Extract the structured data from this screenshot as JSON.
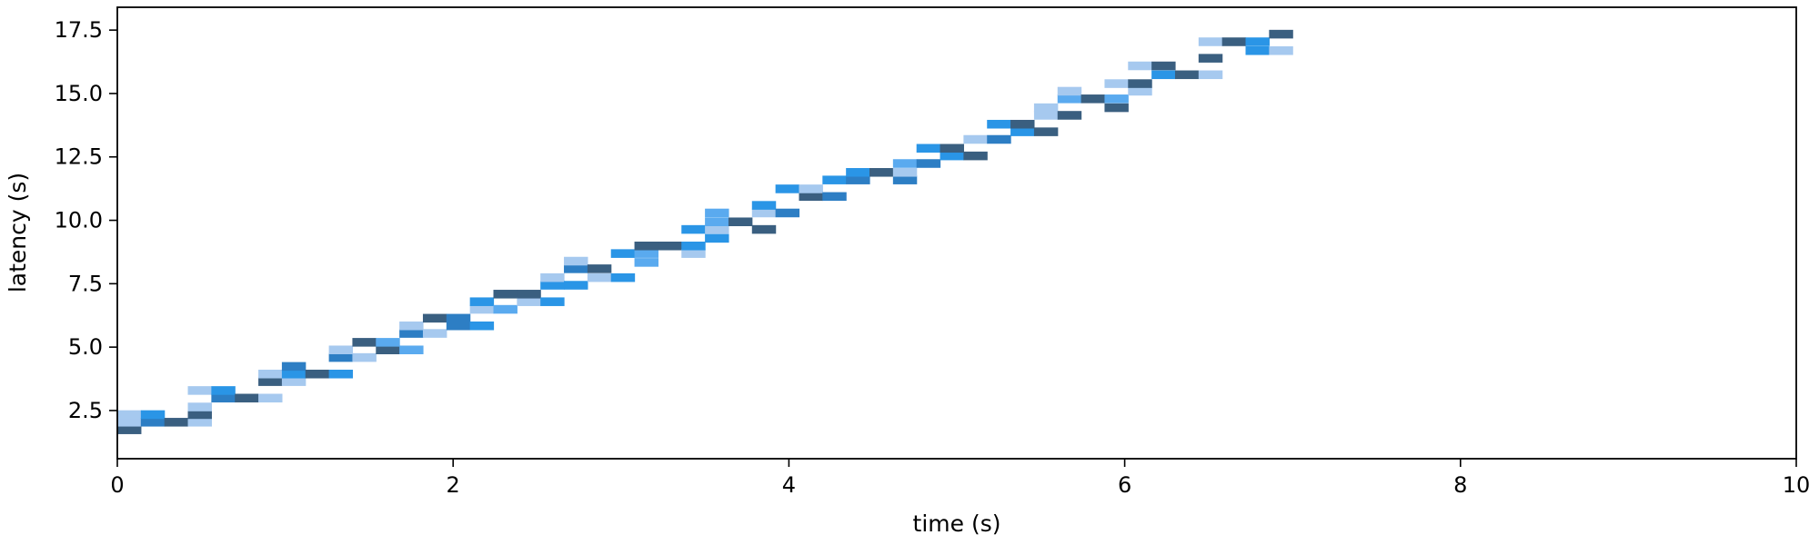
{
  "chart_data": {
    "type": "heatmap",
    "title": "",
    "xlabel": "time (s)",
    "ylabel": "latency (s)",
    "xlim": [
      0,
      10
    ],
    "ylim": [
      0.6,
      18.4
    ],
    "x_ticks": [
      0,
      2,
      4,
      6,
      8,
      10
    ],
    "x_tick_labels": [
      "0",
      "2",
      "4",
      "6",
      "8",
      "10"
    ],
    "y_ticks": [
      2.5,
      5.0,
      7.5,
      10.0,
      12.5,
      15.0,
      17.5
    ],
    "y_tick_labels": [
      "2.5",
      "5.0",
      "7.5",
      "10.0",
      "12.5",
      "15.0",
      "17.5"
    ],
    "grid": false,
    "legend": "none",
    "bin_width_x": 0.14,
    "bin_height_y": 0.32,
    "colors": {
      "very_dark": "#3a5f80",
      "dark": "#2d7ec4",
      "medium": "#2a95e6",
      "light": "#5aaaef",
      "very_light": "#a6c9ef"
    },
    "cells": [
      {
        "x": 0.0,
        "y": 1.75,
        "c": "very_dark"
      },
      {
        "x": 0.0,
        "y": 2.05,
        "c": "very_light"
      },
      {
        "x": 0.0,
        "y": 2.35,
        "c": "very_light"
      },
      {
        "x": 0.14,
        "y": 2.05,
        "c": "dark"
      },
      {
        "x": 0.14,
        "y": 2.35,
        "c": "medium"
      },
      {
        "x": 0.28,
        "y": 2.05,
        "c": "very_dark"
      },
      {
        "x": 0.42,
        "y": 2.05,
        "c": "very_light"
      },
      {
        "x": 0.42,
        "y": 2.35,
        "c": "very_dark"
      },
      {
        "x": 0.42,
        "y": 2.65,
        "c": "very_light"
      },
      {
        "x": 0.42,
        "y": 3.3,
        "c": "very_light"
      },
      {
        "x": 0.56,
        "y": 3.0,
        "c": "dark"
      },
      {
        "x": 0.56,
        "y": 3.3,
        "c": "medium"
      },
      {
        "x": 0.7,
        "y": 3.0,
        "c": "very_dark"
      },
      {
        "x": 0.84,
        "y": 3.0,
        "c": "very_light"
      },
      {
        "x": 0.84,
        "y": 3.65,
        "c": "very_dark"
      },
      {
        "x": 0.84,
        "y": 3.95,
        "c": "very_light"
      },
      {
        "x": 0.98,
        "y": 3.65,
        "c": "very_light"
      },
      {
        "x": 0.98,
        "y": 3.95,
        "c": "medium"
      },
      {
        "x": 0.98,
        "y": 4.25,
        "c": "dark"
      },
      {
        "x": 1.12,
        "y": 3.95,
        "c": "very_dark"
      },
      {
        "x": 1.26,
        "y": 3.95,
        "c": "medium"
      },
      {
        "x": 1.26,
        "y": 4.6,
        "c": "dark"
      },
      {
        "x": 1.26,
        "y": 4.9,
        "c": "very_light"
      },
      {
        "x": 1.4,
        "y": 4.6,
        "c": "very_light"
      },
      {
        "x": 1.4,
        "y": 5.2,
        "c": "very_dark"
      },
      {
        "x": 1.54,
        "y": 4.9,
        "c": "very_dark"
      },
      {
        "x": 1.54,
        "y": 5.2,
        "c": "light"
      },
      {
        "x": 1.68,
        "y": 4.9,
        "c": "light"
      },
      {
        "x": 1.68,
        "y": 5.55,
        "c": "dark"
      },
      {
        "x": 1.68,
        "y": 5.85,
        "c": "very_light"
      },
      {
        "x": 1.82,
        "y": 5.55,
        "c": "very_light"
      },
      {
        "x": 1.82,
        "y": 6.15,
        "c": "very_dark"
      },
      {
        "x": 1.96,
        "y": 5.85,
        "c": "dark"
      },
      {
        "x": 1.96,
        "y": 6.15,
        "c": "dark"
      },
      {
        "x": 2.1,
        "y": 5.85,
        "c": "medium"
      },
      {
        "x": 2.1,
        "y": 6.5,
        "c": "very_light"
      },
      {
        "x": 2.1,
        "y": 6.8,
        "c": "medium"
      },
      {
        "x": 2.24,
        "y": 6.5,
        "c": "light"
      },
      {
        "x": 2.24,
        "y": 7.1,
        "c": "very_dark"
      },
      {
        "x": 2.38,
        "y": 6.8,
        "c": "very_light"
      },
      {
        "x": 2.38,
        "y": 7.1,
        "c": "very_dark"
      },
      {
        "x": 2.52,
        "y": 6.8,
        "c": "medium"
      },
      {
        "x": 2.52,
        "y": 7.45,
        "c": "medium"
      },
      {
        "x": 2.52,
        "y": 7.75,
        "c": "very_light"
      },
      {
        "x": 2.66,
        "y": 7.45,
        "c": "medium"
      },
      {
        "x": 2.66,
        "y": 8.1,
        "c": "dark"
      },
      {
        "x": 2.66,
        "y": 8.4,
        "c": "very_light"
      },
      {
        "x": 2.8,
        "y": 7.75,
        "c": "very_light"
      },
      {
        "x": 2.8,
        "y": 8.1,
        "c": "very_dark"
      },
      {
        "x": 2.94,
        "y": 7.75,
        "c": "medium"
      },
      {
        "x": 2.94,
        "y": 8.7,
        "c": "medium"
      },
      {
        "x": 3.08,
        "y": 8.35,
        "c": "light"
      },
      {
        "x": 3.08,
        "y": 8.7,
        "c": "light"
      },
      {
        "x": 3.08,
        "y": 9.0,
        "c": "very_dark"
      },
      {
        "x": 3.22,
        "y": 9.0,
        "c": "very_dark"
      },
      {
        "x": 3.36,
        "y": 8.7,
        "c": "very_light"
      },
      {
        "x": 3.36,
        "y": 9.0,
        "c": "medium"
      },
      {
        "x": 3.36,
        "y": 9.65,
        "c": "medium"
      },
      {
        "x": 3.5,
        "y": 9.3,
        "c": "medium"
      },
      {
        "x": 3.5,
        "y": 9.65,
        "c": "very_light"
      },
      {
        "x": 3.5,
        "y": 9.95,
        "c": "light"
      },
      {
        "x": 3.5,
        "y": 10.3,
        "c": "light"
      },
      {
        "x": 3.64,
        "y": 9.95,
        "c": "very_dark"
      },
      {
        "x": 3.78,
        "y": 9.65,
        "c": "very_dark"
      },
      {
        "x": 3.78,
        "y": 10.3,
        "c": "very_light"
      },
      {
        "x": 3.78,
        "y": 10.6,
        "c": "medium"
      },
      {
        "x": 3.92,
        "y": 10.3,
        "c": "dark"
      },
      {
        "x": 3.92,
        "y": 11.25,
        "c": "medium"
      },
      {
        "x": 4.06,
        "y": 10.95,
        "c": "very_dark"
      },
      {
        "x": 4.06,
        "y": 11.25,
        "c": "very_light"
      },
      {
        "x": 4.2,
        "y": 10.95,
        "c": "dark"
      },
      {
        "x": 4.2,
        "y": 11.6,
        "c": "medium"
      },
      {
        "x": 4.34,
        "y": 11.6,
        "c": "dark"
      },
      {
        "x": 4.34,
        "y": 11.9,
        "c": "medium"
      },
      {
        "x": 4.48,
        "y": 11.9,
        "c": "very_dark"
      },
      {
        "x": 4.62,
        "y": 11.6,
        "c": "dark"
      },
      {
        "x": 4.62,
        "y": 11.9,
        "c": "very_light"
      },
      {
        "x": 4.62,
        "y": 12.25,
        "c": "light"
      },
      {
        "x": 4.76,
        "y": 12.25,
        "c": "dark"
      },
      {
        "x": 4.76,
        "y": 12.85,
        "c": "medium"
      },
      {
        "x": 4.9,
        "y": 12.55,
        "c": "medium"
      },
      {
        "x": 4.9,
        "y": 12.85,
        "c": "very_dark"
      },
      {
        "x": 5.04,
        "y": 12.55,
        "c": "very_dark"
      },
      {
        "x": 5.04,
        "y": 13.2,
        "c": "very_light"
      },
      {
        "x": 5.18,
        "y": 13.2,
        "c": "dark"
      },
      {
        "x": 5.18,
        "y": 13.8,
        "c": "medium"
      },
      {
        "x": 5.32,
        "y": 13.5,
        "c": "medium"
      },
      {
        "x": 5.32,
        "y": 13.8,
        "c": "very_dark"
      },
      {
        "x": 5.46,
        "y": 13.5,
        "c": "very_dark"
      },
      {
        "x": 5.46,
        "y": 14.15,
        "c": "very_light"
      },
      {
        "x": 5.46,
        "y": 14.45,
        "c": "very_light"
      },
      {
        "x": 5.6,
        "y": 14.15,
        "c": "very_dark"
      },
      {
        "x": 5.6,
        "y": 14.8,
        "c": "light"
      },
      {
        "x": 5.6,
        "y": 15.1,
        "c": "very_light"
      },
      {
        "x": 5.74,
        "y": 14.8,
        "c": "very_dark"
      },
      {
        "x": 5.88,
        "y": 14.45,
        "c": "very_dark"
      },
      {
        "x": 5.88,
        "y": 14.8,
        "c": "light"
      },
      {
        "x": 5.88,
        "y": 15.4,
        "c": "very_light"
      },
      {
        "x": 6.02,
        "y": 15.1,
        "c": "very_light"
      },
      {
        "x": 6.02,
        "y": 15.4,
        "c": "very_dark"
      },
      {
        "x": 6.02,
        "y": 16.1,
        "c": "very_light"
      },
      {
        "x": 6.16,
        "y": 15.75,
        "c": "medium"
      },
      {
        "x": 6.16,
        "y": 16.1,
        "c": "very_dark"
      },
      {
        "x": 6.3,
        "y": 15.75,
        "c": "very_dark"
      },
      {
        "x": 6.44,
        "y": 15.75,
        "c": "very_light"
      },
      {
        "x": 6.44,
        "y": 16.4,
        "c": "very_dark"
      },
      {
        "x": 6.44,
        "y": 17.05,
        "c": "very_light"
      },
      {
        "x": 6.58,
        "y": 17.05,
        "c": "very_dark"
      },
      {
        "x": 6.72,
        "y": 16.7,
        "c": "medium"
      },
      {
        "x": 6.72,
        "y": 17.05,
        "c": "medium"
      },
      {
        "x": 6.86,
        "y": 16.7,
        "c": "very_light"
      },
      {
        "x": 6.86,
        "y": 17.35,
        "c": "very_dark"
      }
    ]
  }
}
